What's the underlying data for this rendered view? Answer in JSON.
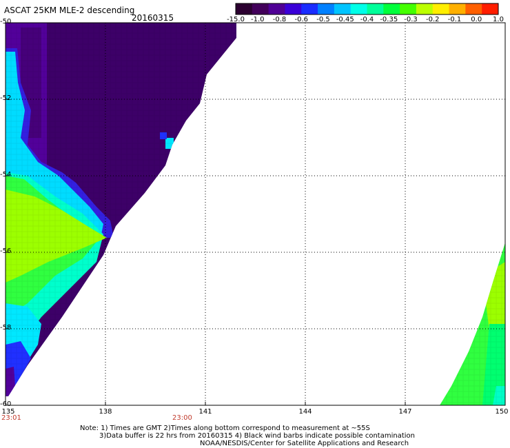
{
  "header": {
    "title": "ASCAT 25KM MLE-2 descending",
    "date": "20160315"
  },
  "colorbar": {
    "labels": [
      "-15.0",
      "-1.0",
      "-0.8",
      "-0.6",
      "-0.5",
      "-0.45",
      "-0.4",
      "-0.35",
      "-0.3",
      "-0.2",
      "-0.1",
      "0.0",
      "1.0"
    ],
    "colors": [
      "#2b0030",
      "#42005a",
      "#4f0095",
      "#3a00d8",
      "#1a2cff",
      "#0080ff",
      "#00c4ff",
      "#00ffe8",
      "#00ff9a",
      "#00ff3c",
      "#44ff00",
      "#bcff00",
      "#ffee00",
      "#ffb000",
      "#ff6000",
      "#ff1e00"
    ]
  },
  "map": {
    "lat_labels": [
      "-50",
      "-52",
      "-54",
      "-56",
      "-58",
      "-60"
    ],
    "lon_labels": [
      "135",
      "138",
      "141",
      "144",
      "147",
      "150"
    ],
    "time_labels": [
      "23:01",
      "23:00"
    ],
    "colors": {
      "land_or_no_data": "#ffffff",
      "deep_purple": "#3d0068",
      "purple": "#52009a",
      "blue": "#2030ff",
      "cyan": "#00e8ff",
      "aqua": "#00ffd0",
      "green": "#20ff40",
      "yellow_green": "#9cff00"
    }
  },
  "notes": {
    "line1": "Note: 1) Times are GMT 2)Times along bottom correspond to measurement at ~55S",
    "line2": "3)Data buffer is 22 hrs from 20160315 4) Black wind barbs indicate possible contamination",
    "line3": "NOAA/NESDIS/Center for Satellite Applications and Research"
  }
}
